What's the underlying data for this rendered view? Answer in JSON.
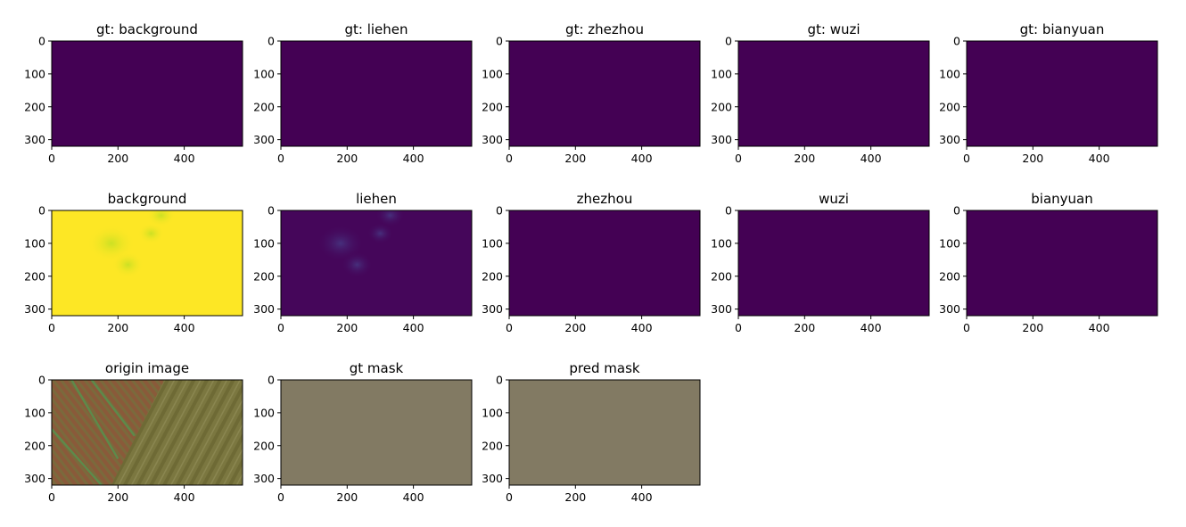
{
  "chart_data": {
    "type": "heatmap",
    "layout": {
      "rows": 3,
      "cols": 5
    },
    "panels": [
      {
        "title": "gt: background",
        "kind": "uniform",
        "color": "#440154"
      },
      {
        "title": "gt: liehen",
        "kind": "uniform",
        "color": "#440154"
      },
      {
        "title": "gt: zhezhou",
        "kind": "uniform",
        "color": "#440154"
      },
      {
        "title": "gt: wuzi",
        "kind": "uniform",
        "color": "#440154"
      },
      {
        "title": "gt: bianyuan",
        "kind": "uniform",
        "color": "#440154"
      },
      {
        "title": "background",
        "kind": "prob-high",
        "color": "#fde725"
      },
      {
        "title": "liehen",
        "kind": "prob-low",
        "color": "#45065a"
      },
      {
        "title": "zhezhou",
        "kind": "uniform",
        "color": "#440154"
      },
      {
        "title": "wuzi",
        "kind": "uniform",
        "color": "#440154"
      },
      {
        "title": "bianyuan",
        "kind": "uniform",
        "color": "#440154"
      },
      {
        "title": "origin image",
        "kind": "photo",
        "color": "#7a6d3c"
      },
      {
        "title": "gt mask",
        "kind": "uniform",
        "color": "#827a63"
      },
      {
        "title": "pred mask",
        "kind": "uniform",
        "color": "#827a63"
      }
    ],
    "image_width": 576,
    "image_height": 320,
    "xticks": [
      0,
      200,
      400
    ],
    "yticks": [
      0,
      100,
      200,
      300
    ],
    "xlim": [
      0,
      576
    ],
    "ylim": [
      320,
      0
    ],
    "colormap": "viridis"
  }
}
